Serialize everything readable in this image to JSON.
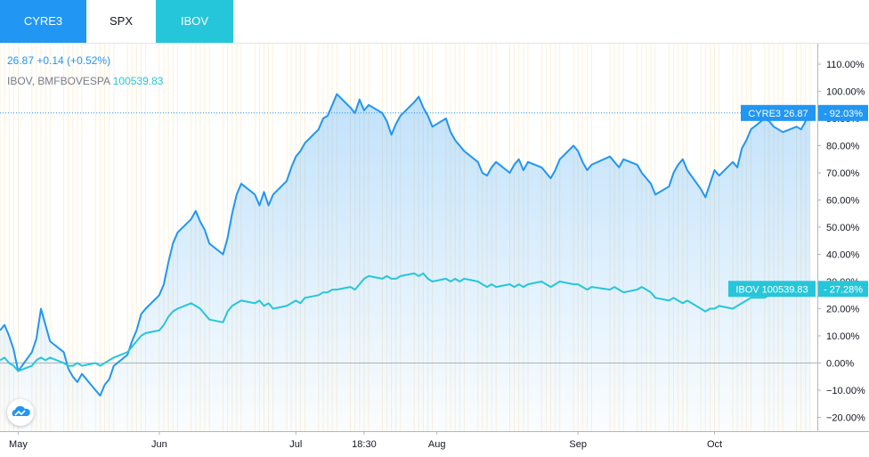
{
  "tabs": [
    {
      "label": "CYRE3",
      "active": true,
      "color": "#2196f3"
    },
    {
      "label": "SPX",
      "active": false,
      "color": "#ffffff"
    },
    {
      "label": "IBOV",
      "active": false,
      "color": "#26c6da"
    }
  ],
  "legend": {
    "cyre3": "26.87 +0.14 (+0.52%)",
    "ibov_name": "IBOV, BMFBOVESPA",
    "ibov_value": "100539.83"
  },
  "colors": {
    "cyre3": "#2196f3",
    "ibov": "#26c6da",
    "grid": "#fdf0d8",
    "zero_line": "#b2b5be"
  },
  "logo_icon": "tradingview-cloud-icon",
  "chart_data": {
    "type": "line",
    "y_unit": "percent",
    "ylim": [
      -25,
      115
    ],
    "y_ticks": [
      -20,
      -10,
      0,
      10,
      20,
      30,
      40,
      50,
      60,
      70,
      80,
      90,
      100,
      110
    ],
    "y_tick_labels": [
      "−20.00%",
      "−10.00%",
      "0.00%",
      "10.00%",
      "20.00%",
      "30.00%",
      "40.00%",
      "50.00%",
      "60.00%",
      "70.00%",
      "80.00%",
      "90.00%",
      "100.00%",
      "110.00%"
    ],
    "x_range": [
      "2020-04-27",
      "2020-10-23"
    ],
    "x_ticks": [
      {
        "date": "2020-05-01",
        "label": "May"
      },
      {
        "date": "2020-06-01",
        "label": "Jun"
      },
      {
        "date": "2020-07-01",
        "label": "Jul"
      },
      {
        "date": "2020-07-16",
        "label": "18:30"
      },
      {
        "date": "2020-08-01",
        "label": "Aug"
      },
      {
        "date": "2020-09-01",
        "label": "Sep"
      },
      {
        "date": "2020-10-01",
        "label": "Oct"
      }
    ],
    "series": [
      {
        "name": "CYRE3",
        "color": "#2196f3",
        "last_label": "CYRE3 26.87",
        "last_value_label": "92.03%",
        "points": [
          [
            "2020-04-27",
            12
          ],
          [
            "2020-04-28",
            14
          ],
          [
            "2020-04-29",
            10
          ],
          [
            "2020-04-30",
            5
          ],
          [
            "2020-05-01",
            -3
          ],
          [
            "2020-05-04",
            4
          ],
          [
            "2020-05-05",
            9
          ],
          [
            "2020-05-06",
            20
          ],
          [
            "2020-05-07",
            14
          ],
          [
            "2020-05-08",
            8
          ],
          [
            "2020-05-11",
            4
          ],
          [
            "2020-05-12",
            -2
          ],
          [
            "2020-05-13",
            -5
          ],
          [
            "2020-05-14",
            -7
          ],
          [
            "2020-05-15",
            -4
          ],
          [
            "2020-05-18",
            -10
          ],
          [
            "2020-05-19",
            -12
          ],
          [
            "2020-05-20",
            -8
          ],
          [
            "2020-05-21",
            -6
          ],
          [
            "2020-05-22",
            -1
          ],
          [
            "2020-05-25",
            3
          ],
          [
            "2020-05-26",
            8
          ],
          [
            "2020-05-27",
            12
          ],
          [
            "2020-05-28",
            18
          ],
          [
            "2020-05-29",
            20
          ],
          [
            "2020-06-01",
            25
          ],
          [
            "2020-06-02",
            29
          ],
          [
            "2020-06-03",
            37
          ],
          [
            "2020-06-04",
            44
          ],
          [
            "2020-06-05",
            48
          ],
          [
            "2020-06-08",
            53
          ],
          [
            "2020-06-09",
            56
          ],
          [
            "2020-06-10",
            52
          ],
          [
            "2020-06-11",
            49
          ],
          [
            "2020-06-12",
            44
          ],
          [
            "2020-06-15",
            40
          ],
          [
            "2020-06-16",
            46
          ],
          [
            "2020-06-17",
            55
          ],
          [
            "2020-06-18",
            62
          ],
          [
            "2020-06-19",
            66
          ],
          [
            "2020-06-22",
            62
          ],
          [
            "2020-06-23",
            58
          ],
          [
            "2020-06-24",
            63
          ],
          [
            "2020-06-25",
            58
          ],
          [
            "2020-06-26",
            62
          ],
          [
            "2020-06-29",
            67
          ],
          [
            "2020-06-30",
            72
          ],
          [
            "2020-07-01",
            76
          ],
          [
            "2020-07-02",
            78
          ],
          [
            "2020-07-03",
            81
          ],
          [
            "2020-07-06",
            86
          ],
          [
            "2020-07-07",
            90
          ],
          [
            "2020-07-08",
            91
          ],
          [
            "2020-07-09",
            95
          ],
          [
            "2020-07-10",
            99
          ],
          [
            "2020-07-13",
            94
          ],
          [
            "2020-07-14",
            92
          ],
          [
            "2020-07-15",
            97
          ],
          [
            "2020-07-16",
            93
          ],
          [
            "2020-07-17",
            95
          ],
          [
            "2020-07-20",
            92
          ],
          [
            "2020-07-21",
            89
          ],
          [
            "2020-07-22",
            84
          ],
          [
            "2020-07-23",
            88
          ],
          [
            "2020-07-24",
            91
          ],
          [
            "2020-07-27",
            96
          ],
          [
            "2020-07-28",
            98
          ],
          [
            "2020-07-29",
            94
          ],
          [
            "2020-07-30",
            91
          ],
          [
            "2020-07-31",
            87
          ],
          [
            "2020-08-03",
            90
          ],
          [
            "2020-08-04",
            85
          ],
          [
            "2020-08-05",
            82
          ],
          [
            "2020-08-06",
            80
          ],
          [
            "2020-08-07",
            78
          ],
          [
            "2020-08-10",
            74
          ],
          [
            "2020-08-11",
            70
          ],
          [
            "2020-08-12",
            69
          ],
          [
            "2020-08-13",
            72
          ],
          [
            "2020-08-14",
            74
          ],
          [
            "2020-08-17",
            70
          ],
          [
            "2020-08-18",
            73
          ],
          [
            "2020-08-19",
            75
          ],
          [
            "2020-08-20",
            71
          ],
          [
            "2020-08-21",
            74
          ],
          [
            "2020-08-24",
            72
          ],
          [
            "2020-08-25",
            70
          ],
          [
            "2020-08-26",
            68
          ],
          [
            "2020-08-27",
            71
          ],
          [
            "2020-08-28",
            75
          ],
          [
            "2020-08-31",
            80
          ],
          [
            "2020-09-01",
            78
          ],
          [
            "2020-09-02",
            74
          ],
          [
            "2020-09-03",
            71
          ],
          [
            "2020-09-04",
            73
          ],
          [
            "2020-09-08",
            76
          ],
          [
            "2020-09-09",
            74
          ],
          [
            "2020-09-10",
            72
          ],
          [
            "2020-09-11",
            75
          ],
          [
            "2020-09-14",
            73
          ],
          [
            "2020-09-15",
            70
          ],
          [
            "2020-09-16",
            68
          ],
          [
            "2020-09-17",
            66
          ],
          [
            "2020-09-18",
            62
          ],
          [
            "2020-09-21",
            65
          ],
          [
            "2020-09-22",
            70
          ],
          [
            "2020-09-23",
            73
          ],
          [
            "2020-09-24",
            75
          ],
          [
            "2020-09-25",
            71
          ],
          [
            "2020-09-28",
            64
          ],
          [
            "2020-09-29",
            61
          ],
          [
            "2020-09-30",
            66
          ],
          [
            "2020-10-01",
            71
          ],
          [
            "2020-10-02",
            69
          ],
          [
            "2020-10-05",
            74
          ],
          [
            "2020-10-06",
            72
          ],
          [
            "2020-10-07",
            79
          ],
          [
            "2020-10-08",
            82
          ],
          [
            "2020-10-09",
            86
          ],
          [
            "2020-10-12",
            90
          ],
          [
            "2020-10-13",
            89
          ],
          [
            "2020-10-14",
            87
          ],
          [
            "2020-10-15",
            86
          ],
          [
            "2020-10-16",
            85
          ],
          [
            "2020-10-19",
            87
          ],
          [
            "2020-10-20",
            86
          ],
          [
            "2020-10-21",
            89
          ],
          [
            "2020-10-22",
            92.03
          ]
        ]
      },
      {
        "name": "IBOV",
        "color": "#26c6da",
        "last_label": "IBOV 100539.83",
        "last_value_label": "27.28%",
        "points": [
          [
            "2020-04-27",
            1
          ],
          [
            "2020-04-28",
            2
          ],
          [
            "2020-04-29",
            0
          ],
          [
            "2020-04-30",
            -1
          ],
          [
            "2020-05-01",
            -3
          ],
          [
            "2020-05-04",
            -1
          ],
          [
            "2020-05-05",
            1
          ],
          [
            "2020-05-06",
            2
          ],
          [
            "2020-05-07",
            1
          ],
          [
            "2020-05-08",
            2
          ],
          [
            "2020-05-11",
            0
          ],
          [
            "2020-05-12",
            -1
          ],
          [
            "2020-05-13",
            -1
          ],
          [
            "2020-05-14",
            0
          ],
          [
            "2020-05-15",
            -1
          ],
          [
            "2020-05-18",
            0
          ],
          [
            "2020-05-19",
            -1
          ],
          [
            "2020-05-20",
            0
          ],
          [
            "2020-05-21",
            1
          ],
          [
            "2020-05-22",
            2
          ],
          [
            "2020-05-25",
            4
          ],
          [
            "2020-05-26",
            6
          ],
          [
            "2020-05-27",
            8
          ],
          [
            "2020-05-28",
            10
          ],
          [
            "2020-05-29",
            11
          ],
          [
            "2020-06-01",
            12
          ],
          [
            "2020-06-02",
            14
          ],
          [
            "2020-06-03",
            17
          ],
          [
            "2020-06-04",
            19
          ],
          [
            "2020-06-05",
            20
          ],
          [
            "2020-06-08",
            22
          ],
          [
            "2020-06-09",
            21
          ],
          [
            "2020-06-10",
            20
          ],
          [
            "2020-06-11",
            18
          ],
          [
            "2020-06-12",
            16
          ],
          [
            "2020-06-15",
            15
          ],
          [
            "2020-06-16",
            19
          ],
          [
            "2020-06-17",
            21
          ],
          [
            "2020-06-18",
            22
          ],
          [
            "2020-06-19",
            23
          ],
          [
            "2020-06-22",
            22
          ],
          [
            "2020-06-23",
            23
          ],
          [
            "2020-06-24",
            21
          ],
          [
            "2020-06-25",
            22
          ],
          [
            "2020-06-26",
            20
          ],
          [
            "2020-06-29",
            21
          ],
          [
            "2020-06-30",
            22
          ],
          [
            "2020-07-01",
            23
          ],
          [
            "2020-07-02",
            22
          ],
          [
            "2020-07-03",
            24
          ],
          [
            "2020-07-06",
            25
          ],
          [
            "2020-07-07",
            26
          ],
          [
            "2020-07-08",
            26
          ],
          [
            "2020-07-09",
            27
          ],
          [
            "2020-07-10",
            27
          ],
          [
            "2020-07-13",
            28
          ],
          [
            "2020-07-14",
            27
          ],
          [
            "2020-07-15",
            29
          ],
          [
            "2020-07-16",
            31
          ],
          [
            "2020-07-17",
            32
          ],
          [
            "2020-07-20",
            31
          ],
          [
            "2020-07-21",
            32
          ],
          [
            "2020-07-22",
            31
          ],
          [
            "2020-07-23",
            31
          ],
          [
            "2020-07-24",
            32
          ],
          [
            "2020-07-27",
            33
          ],
          [
            "2020-07-28",
            32
          ],
          [
            "2020-07-29",
            33
          ],
          [
            "2020-07-30",
            31
          ],
          [
            "2020-07-31",
            30
          ],
          [
            "2020-08-03",
            31
          ],
          [
            "2020-08-04",
            30
          ],
          [
            "2020-08-05",
            31
          ],
          [
            "2020-08-06",
            30
          ],
          [
            "2020-08-07",
            31
          ],
          [
            "2020-08-10",
            30
          ],
          [
            "2020-08-11",
            29
          ],
          [
            "2020-08-12",
            28
          ],
          [
            "2020-08-13",
            29
          ],
          [
            "2020-08-14",
            28
          ],
          [
            "2020-08-17",
            29
          ],
          [
            "2020-08-18",
            28
          ],
          [
            "2020-08-19",
            29
          ],
          [
            "2020-08-20",
            28
          ],
          [
            "2020-08-21",
            29
          ],
          [
            "2020-08-24",
            30
          ],
          [
            "2020-08-25",
            29
          ],
          [
            "2020-08-26",
            28
          ],
          [
            "2020-08-27",
            29
          ],
          [
            "2020-08-28",
            30
          ],
          [
            "2020-08-31",
            29
          ],
          [
            "2020-09-01",
            29
          ],
          [
            "2020-09-02",
            28
          ],
          [
            "2020-09-03",
            27
          ],
          [
            "2020-09-04",
            28
          ],
          [
            "2020-09-08",
            27
          ],
          [
            "2020-09-09",
            28
          ],
          [
            "2020-09-10",
            27
          ],
          [
            "2020-09-11",
            26
          ],
          [
            "2020-09-14",
            27
          ],
          [
            "2020-09-15",
            28
          ],
          [
            "2020-09-16",
            27
          ],
          [
            "2020-09-17",
            26
          ],
          [
            "2020-09-18",
            24
          ],
          [
            "2020-09-21",
            23
          ],
          [
            "2020-09-22",
            24
          ],
          [
            "2020-09-23",
            23
          ],
          [
            "2020-09-24",
            22
          ],
          [
            "2020-09-25",
            23
          ],
          [
            "2020-09-28",
            20
          ],
          [
            "2020-09-29",
            19
          ],
          [
            "2020-09-30",
            20
          ],
          [
            "2020-10-01",
            20
          ],
          [
            "2020-10-02",
            21
          ],
          [
            "2020-10-05",
            20
          ],
          [
            "2020-10-06",
            21
          ],
          [
            "2020-10-07",
            22
          ],
          [
            "2020-10-08",
            23
          ],
          [
            "2020-10-09",
            24
          ],
          [
            "2020-10-12",
            24
          ],
          [
            "2020-10-13",
            25
          ],
          [
            "2020-10-14",
            25
          ],
          [
            "2020-10-15",
            26
          ],
          [
            "2020-10-16",
            27
          ],
          [
            "2020-10-19",
            27
          ],
          [
            "2020-10-20",
            28
          ],
          [
            "2020-10-21",
            27
          ],
          [
            "2020-10-22",
            27.28
          ]
        ]
      }
    ]
  }
}
